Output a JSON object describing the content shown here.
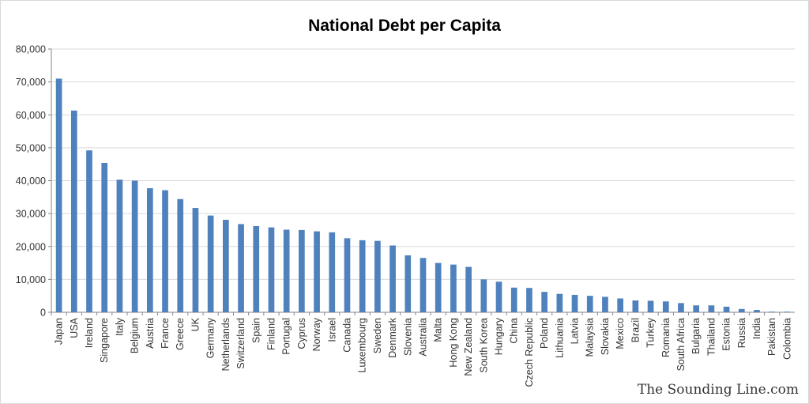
{
  "chart_data": {
    "type": "bar",
    "title": "National Debt per Capita",
    "xlabel": "",
    "ylabel": "",
    "ylim": [
      0,
      80000
    ],
    "yticks": [
      "0",
      "10,000",
      "20,000",
      "30,000",
      "40,000",
      "50,000",
      "60,000",
      "70,000",
      "80,000"
    ],
    "grid": true,
    "bar_color": "#4f81bd",
    "categories": [
      "Japan",
      "USA",
      "Ireland",
      "Singapore",
      "Italy",
      "Belgium",
      "Austria",
      "France",
      "Greece",
      "UK",
      "Germany",
      "Netherlands",
      "Switzerland",
      "Spain",
      "Finland",
      "Portugal",
      "Cyprus",
      "Norway",
      "Israel",
      "Canada",
      "Luxembourg",
      "Sweden",
      "Denmark",
      "Slovenia",
      "Australia",
      "Malta",
      "Hong Kong",
      "New Zealand",
      "South Korea",
      "Hungary",
      "China",
      "Czech Republic",
      "Poland",
      "Lithuania",
      "Latvia",
      "Malaysia",
      "Slovakia",
      "Mexico",
      "Brazil",
      "Turkey",
      "Romania",
      "South Africa",
      "Bulgaria",
      "Thailand",
      "Estonia",
      "Russia",
      "India",
      "Pakistan",
      "Colombia"
    ],
    "values": [
      71000,
      61300,
      49200,
      45400,
      40300,
      40000,
      37700,
      37100,
      34400,
      31700,
      29400,
      28100,
      26800,
      26200,
      25800,
      25100,
      25000,
      24600,
      24300,
      22500,
      21900,
      21700,
      20300,
      17300,
      16500,
      15000,
      14500,
      13800,
      10000,
      9300,
      7500,
      7400,
      6200,
      5600,
      5300,
      5000,
      4700,
      4200,
      3600,
      3500,
      3300,
      2800,
      2100,
      2100,
      1700,
      1000,
      700,
      200,
      200
    ]
  },
  "watermark": "The Sounding Line.com"
}
